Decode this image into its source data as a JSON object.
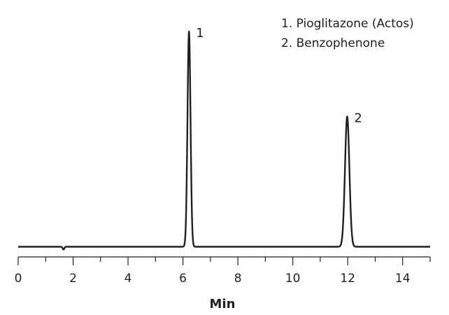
{
  "chart_data": {
    "type": "line",
    "title": "",
    "xlabel": "Min",
    "ylabel": "",
    "xlim": [
      0,
      15
    ],
    "x_major_ticks": [
      0,
      2,
      4,
      6,
      8,
      10,
      12,
      14
    ],
    "x_tick_labels": [
      "0",
      "2",
      "4",
      "6",
      "8",
      "10",
      "12",
      "14"
    ],
    "x_minor_step": 1,
    "grid": false,
    "y_axis_visible": false,
    "line_color": "#231f20",
    "baseline": 0,
    "peaks": [
      {
        "label": "1",
        "retention_time_min": 6.22,
        "relative_height": 1.0,
        "width_min": 0.055
      },
      {
        "label": "2",
        "retention_time_min": 11.98,
        "relative_height": 0.605,
        "width_min": 0.08
      }
    ],
    "artifacts": [
      {
        "retention_time_min": 1.65,
        "relative_height": -0.013,
        "width_min": 0.03
      }
    ],
    "legend": {
      "placement": "top-right",
      "entries": [
        "1.  Pioglitazone (Actos)",
        "2.  Benzophenone"
      ]
    }
  }
}
